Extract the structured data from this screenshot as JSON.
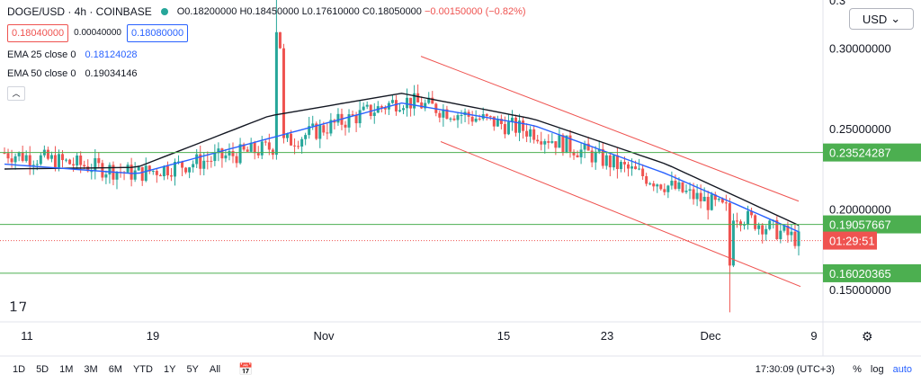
{
  "legend": {
    "symbol": "DOGE/USD · 4h · COINBASE",
    "ohlc": {
      "o": "O0.18200000",
      "h": "H0.18450000",
      "l": "L0.17610000",
      "c": "C0.18050000",
      "chg": "−0.00150000 (−0.82%)"
    },
    "sell_price": "0.18040000",
    "spread": "0.00040000",
    "buy_price": "0.18080000",
    "ema25_label": "EMA 25 close 0",
    "ema25_value": "0.18124028",
    "ema50_label": "EMA 50 close 0",
    "ema50_value": "0.19034146",
    "collapse_icon": "chevron-up-icon"
  },
  "currency_button": "USD",
  "timeframes": [
    "1D",
    "5D",
    "1M",
    "3M",
    "6M",
    "YTD",
    "1Y",
    "5Y",
    "All"
  ],
  "status": {
    "time": "17:30:09 (UTC+3)",
    "percent": "%",
    "log": "log",
    "auto": "auto"
  },
  "countdown": "01:29:51",
  "colors": {
    "up": "#26a69a",
    "down": "#ef5350",
    "ema25": "#2962ff",
    "ema50": "#131722",
    "hline": "#4caf50",
    "channel": "#ef5350"
  },
  "chart_data": {
    "type": "line",
    "x": [
      "Oct 11",
      "Oct 19",
      "Nov",
      "Nov 15",
      "Nov 23",
      "Dec",
      "Dec 9"
    ],
    "series": [
      {
        "values": [
          0.235,
          0.222,
          0.238,
          0.268,
          0.248,
          0.215,
          0.181
        ]
      },
      {
        "values": [
          0.228,
          0.222,
          0.244,
          0.266,
          0.252,
          0.222,
          0.186
        ]
      },
      {
        "values": [
          0.225,
          0.226,
          0.258,
          0.272,
          0.256,
          0.228,
          0.19
        ]
      }
    ],
    "ylim": [
      0.13,
      0.33
    ],
    "yticks": [
      "0.15000000",
      "0.20000000",
      "0.25000000",
      "0.30000000",
      "0.3"
    ],
    "horizontal_levels": [
      "0.23524287",
      "0.19057667",
      "0.16020365"
    ],
    "price_marker": "0.18050000",
    "countdown": "01:29:51"
  }
}
